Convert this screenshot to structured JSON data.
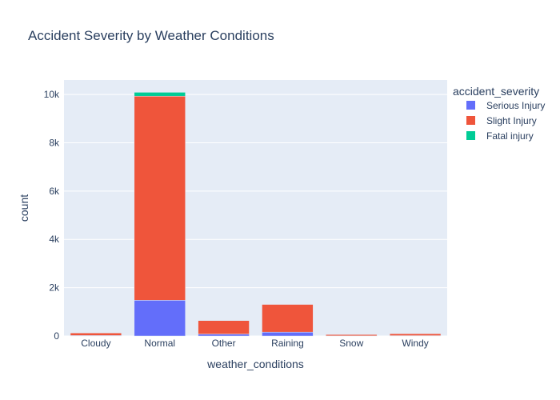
{
  "chart_data": {
    "type": "bar",
    "stacked": true,
    "title": "Accident Severity by Weather Conditions",
    "xlabel": "weather_conditions",
    "ylabel": "count",
    "ylim": [
      0,
      10600
    ],
    "y_ticks": [
      0,
      2000,
      4000,
      6000,
      8000,
      10000
    ],
    "y_tick_labels": [
      "0",
      "2k",
      "4k",
      "6k",
      "8k",
      "10k"
    ],
    "categories": [
      "Cloudy",
      "Normal",
      "Other",
      "Raining",
      "Snow",
      "Windy"
    ],
    "grid": true,
    "legend_title": "accident_severity",
    "legend_position": "top-right",
    "series": [
      {
        "name": "Serious Injury",
        "color": "#636efa",
        "values": [
          20,
          1480,
          80,
          160,
          5,
          15
        ]
      },
      {
        "name": "Slight Injury",
        "color": "#ef553b",
        "values": [
          105,
          8450,
          560,
          1150,
          55,
          80
        ]
      },
      {
        "name": "Fatal injury",
        "color": "#00cc96",
        "values": [
          0,
          160,
          5,
          15,
          0,
          0
        ]
      }
    ]
  }
}
